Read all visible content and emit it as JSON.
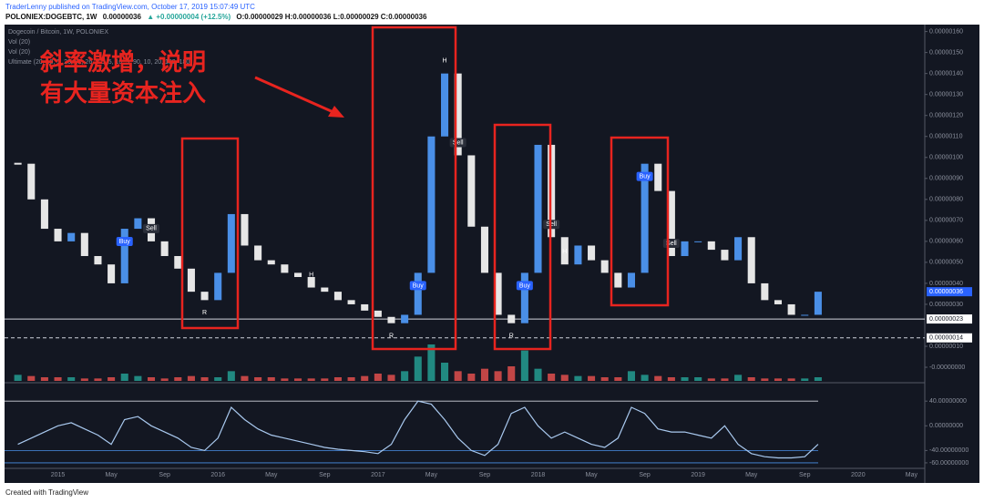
{
  "chart_data": {
    "type": "candlestick",
    "header": {
      "author_line": "TraderLenny published on TradingView.com, October 17, 2019 15:07:49 UTC",
      "symbol": "POLONIEX:DOGEBTC, 1W",
      "price": "0.00000036",
      "change": "▲ +0.00000004 (+12.5%)",
      "ohlc": "O:0.00000029 H:0.00000036 L:0.00000029 C:0.00000036"
    },
    "legend_lines": [
      "Dogecoin / Bitcoin, 1W, POLONIEX",
      "Vol (20)",
      "Vol (20)",
      "Ultimate (20, 10, 5, 26, 52, 26, 2.5, 5, 10, 3, 90, 10, 20, 180, 180)"
    ],
    "annotation": [
      "斜率激增，说明",
      "有大量资本注入"
    ],
    "footer": "Created with TradingView",
    "x": [
      "2014-10",
      "2014-11",
      "2014-12",
      "2015-01",
      "2015-02",
      "2015-03",
      "2015-04",
      "2015-05",
      "2015-06",
      "2015-07",
      "2015-08",
      "2015-09",
      "2015-10",
      "2015-11",
      "2015-12",
      "2016-01",
      "2016-02",
      "2016-03",
      "2016-04",
      "2016-05",
      "2016-06",
      "2016-07",
      "2016-08",
      "2016-09",
      "2016-10",
      "2016-11",
      "2016-12",
      "2017-01",
      "2017-02",
      "2017-03",
      "2017-04",
      "2017-05",
      "2017-06",
      "2017-07",
      "2017-08",
      "2017-09",
      "2017-10",
      "2017-11",
      "2017-12",
      "2018-01",
      "2018-02",
      "2018-03",
      "2018-04",
      "2018-05",
      "2018-06",
      "2018-07",
      "2018-08",
      "2018-09",
      "2018-10",
      "2018-11",
      "2018-12",
      "2019-01",
      "2019-02",
      "2019-03",
      "2019-04",
      "2019-05",
      "2019-06",
      "2019-07",
      "2019-08",
      "2019-09",
      "2019-10"
    ],
    "series": [
      {
        "name": "DOGEBTC",
        "up_color": "#4a8fe7",
        "down_color": "#e6e6e6",
        "values": [
          9.7e-07,
          8e-07,
          6.6e-07,
          6e-07,
          6.4e-07,
          5.3e-07,
          4.9e-07,
          4e-07,
          6.6e-07,
          7.1e-07,
          6e-07,
          5.3e-07,
          4.7e-07,
          3.6e-07,
          3.2e-07,
          4.5e-07,
          7.3e-07,
          5.8e-07,
          5.1e-07,
          4.9e-07,
          4.5e-07,
          4.3e-07,
          3.8e-07,
          3.6e-07,
          3.2e-07,
          3e-07,
          2.7e-07,
          2.4e-07,
          2.1e-07,
          2.5e-07,
          4.5e-07,
          1.1e-06,
          1.4e-06,
          1.01e-06,
          6.7e-07,
          4.5e-07,
          2.5e-07,
          2.1e-07,
          4.5e-07,
          1.06e-06,
          6.2e-07,
          4.9e-07,
          5.8e-07,
          5.1e-07,
          4.5e-07,
          3.8e-07,
          4.5e-07,
          9.7e-07,
          8.4e-07,
          5.3e-07,
          6e-07,
          6e-07,
          5.6e-07,
          5.1e-07,
          6.2e-07,
          4e-07,
          3.2e-07,
          3e-07,
          2.5e-07,
          2.5e-07,
          3.6e-07
        ]
      },
      {
        "name": "Vol",
        "up_color": "#26a69a",
        "down_color": "#ef5350",
        "values": [
          5,
          4,
          3,
          3,
          3,
          2,
          2,
          3,
          6,
          4,
          3,
          2,
          3,
          4,
          3,
          3,
          8,
          4,
          3,
          3,
          2,
          2,
          2,
          2,
          3,
          3,
          4,
          6,
          5,
          8,
          20,
          30,
          15,
          8,
          6,
          10,
          8,
          12,
          25,
          10,
          6,
          5,
          4,
          4,
          3,
          3,
          8,
          5,
          4,
          3,
          3,
          3,
          2,
          2,
          5,
          3,
          2,
          2,
          2,
          2,
          3
        ]
      },
      {
        "name": "Ultimate",
        "color": "#a9c9ef",
        "values": [
          -30,
          -20,
          -10,
          0,
          5,
          -5,
          -15,
          -30,
          10,
          15,
          0,
          -10,
          -20,
          -35,
          -40,
          -20,
          30,
          10,
          -5,
          -15,
          -20,
          -25,
          -30,
          -35,
          -38,
          -40,
          -42,
          -45,
          -30,
          10,
          40,
          35,
          10,
          -20,
          -40,
          -48,
          -30,
          20,
          30,
          0,
          -20,
          -10,
          -20,
          -30,
          -35,
          -20,
          30,
          20,
          -5,
          -10,
          -10,
          -15,
          -20,
          0,
          -30,
          -45,
          -50,
          -52,
          -52,
          -50,
          -30
        ]
      }
    ],
    "xlim": [
      "2014-09",
      "2020-06"
    ],
    "xticks": [
      {
        "value": "2015-01",
        "label": "2015"
      },
      {
        "value": "2015-05",
        "label": "May"
      },
      {
        "value": "2015-09",
        "label": "Sep"
      },
      {
        "value": "2016-01",
        "label": "2016"
      },
      {
        "value": "2016-05",
        "label": "May"
      },
      {
        "value": "2016-09",
        "label": "Sep"
      },
      {
        "value": "2017-01",
        "label": "2017"
      },
      {
        "value": "2017-05",
        "label": "May"
      },
      {
        "value": "2017-09",
        "label": "Sep"
      },
      {
        "value": "2018-01",
        "label": "2018"
      },
      {
        "value": "2018-05",
        "label": "May"
      },
      {
        "value": "2018-09",
        "label": "Sep"
      },
      {
        "value": "2019-01",
        "label": "2019"
      },
      {
        "value": "2019-05",
        "label": "May"
      },
      {
        "value": "2019-09",
        "label": "Sep"
      },
      {
        "value": "2020-01",
        "label": "2020"
      },
      {
        "value": "2020-05",
        "label": "May"
      }
    ],
    "ylim": [
      -6.5e-08,
      1.62e-06
    ],
    "yticks": [
      {
        "value": 1.6e-06,
        "label": "0.00000160"
      },
      {
        "value": 1.5e-06,
        "label": "0.00000150"
      },
      {
        "value": 1.4e-06,
        "label": "0.00000140"
      },
      {
        "value": 1.3e-06,
        "label": "0.00000130"
      },
      {
        "value": 1.2e-06,
        "label": "0.00000120"
      },
      {
        "value": 1.1e-06,
        "label": "0.00000110"
      },
      {
        "value": 1e-06,
        "label": "0.00000100"
      },
      {
        "value": 9e-07,
        "label": "0.00000090"
      },
      {
        "value": 8e-07,
        "label": "0.00000080"
      },
      {
        "value": 7e-07,
        "label": "0.00000070"
      },
      {
        "value": 6e-07,
        "label": "0.00000060"
      },
      {
        "value": 5e-07,
        "label": "0.00000050"
      },
      {
        "value": 4e-07,
        "label": "0.00000040"
      },
      {
        "value": 3e-07,
        "label": "0.00000030"
      },
      {
        "value": 1e-07,
        "label": "0.00000010"
      },
      {
        "value": 0,
        "label": "-0.00000000"
      }
    ],
    "y2lim": [
      -66,
      58
    ],
    "y2ticks": [
      {
        "value": 40,
        "label": "40.00000000"
      },
      {
        "value": 0,
        "label": "0.00000000"
      },
      {
        "value": -40,
        "label": "-40.00000000"
      },
      {
        "value": -60,
        "label": "-60.00000000"
      }
    ],
    "last_price": {
      "value": 3.6e-07,
      "label": "0.00000036"
    },
    "price_lines": [
      {
        "value": 2.3e-07,
        "label": "0.00000023",
        "style": "solid"
      },
      {
        "value": 1.4e-07,
        "label": "0.00000014",
        "style": "dashed"
      }
    ],
    "signals": [
      {
        "label": "Buy",
        "x": "2015-06"
      },
      {
        "label": "Sell",
        "x": "2015-08"
      },
      {
        "label": "R",
        "x": "2015-12"
      },
      {
        "label": "H",
        "x": "2016-08"
      },
      {
        "label": "R",
        "x": "2017-02"
      },
      {
        "label": "Buy",
        "x": "2017-04"
      },
      {
        "label": "H",
        "x": "2017-06"
      },
      {
        "label": "Sell",
        "x": "2017-07"
      },
      {
        "label": "R",
        "x": "2017-11"
      },
      {
        "label": "Buy",
        "x": "2017-12"
      },
      {
        "label": "Sell",
        "x": "2018-02"
      },
      {
        "label": "H",
        "x": "2018-03"
      },
      {
        "label": "Buy",
        "x": "2018-09"
      },
      {
        "label": "Sell",
        "x": "2018-11"
      }
    ],
    "grid": false
  }
}
